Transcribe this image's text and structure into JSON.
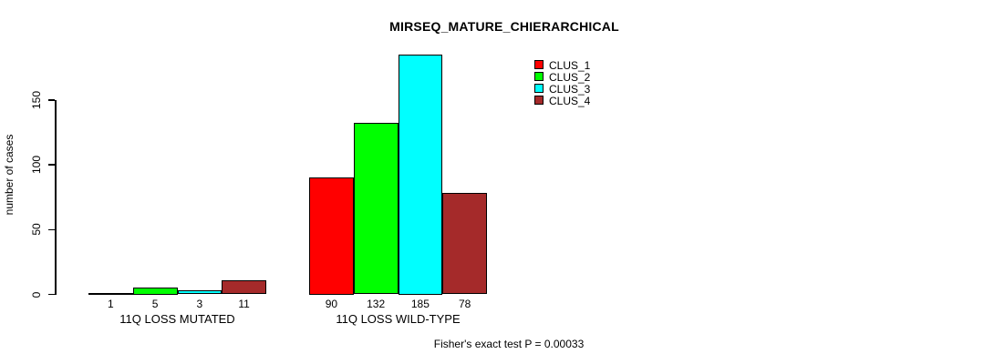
{
  "chart_data": {
    "type": "bar",
    "title": "MIRSEQ_MATURE_CHIERARCHICAL",
    "ylabel": "number of cases",
    "xlabel": "",
    "ylim": [
      0,
      190
    ],
    "yticks": [
      0,
      50,
      100,
      150
    ],
    "grid": false,
    "legend_position": "top-right",
    "categories": [
      "11Q LOSS MUTATED",
      "11Q LOSS WILD-TYPE"
    ],
    "series": [
      {
        "name": "CLUS_1",
        "color": "#FF0000",
        "values": [
          1,
          90
        ]
      },
      {
        "name": "CLUS_2",
        "color": "#00FF00",
        "values": [
          5,
          132
        ]
      },
      {
        "name": "CLUS_3",
        "color": "#00FFFF",
        "values": [
          3,
          185
        ]
      },
      {
        "name": "CLUS_4",
        "color": "#A52A2A",
        "values": [
          11,
          78
        ]
      }
    ],
    "bar_value_labels": [
      [
        "1",
        "5",
        "3",
        "11"
      ],
      [
        "90",
        "132",
        "185",
        "78"
      ]
    ],
    "annotation": "Fisher's exact test P = 0.00033"
  }
}
